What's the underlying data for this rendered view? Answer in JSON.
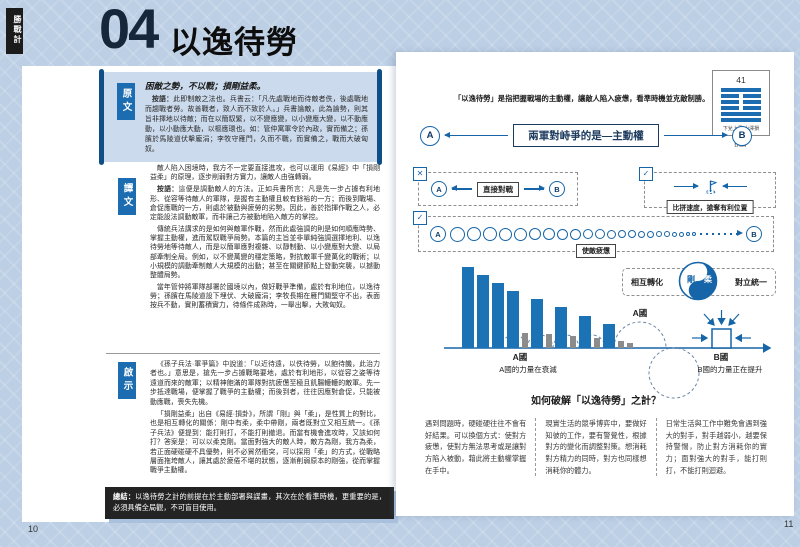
{
  "page": {
    "tab": "勝戰計",
    "number": "04",
    "title": "以逸待勞",
    "page_left": "10",
    "page_right": "11"
  },
  "left": {
    "original": {
      "label": "原文",
      "quote": "困敵之勢，不以戰；損剛益柔。",
      "note_label": "按語：",
      "note_text": "此即制敵之法也。兵書云：「凡先處戰地而待敵者佚，後處戰地而趨戰者勞。故善戰者，致人而不致於人。」兵書論敵，此為論勢，則其旨非擇地以待敵；而在以簡馭繁，以不變應變，以小變應大變，以不動應動，以小動應大動，以樞應環也。如：管仲寓軍令於內政，實而備之；孫臏於馬陵道伏擊龐涓；李牧守雁門，久而不戰，而實備之，戰而大破匈奴。"
    },
    "translation": {
      "label": "譯文",
      "p1": "敵人陷入困境時，我方不一定要直接進攻，也可以運用《易經》中「損剛益柔」的原理，逐步削弱對方實力，讓敵人由強轉弱。",
      "p2_label": "按語：",
      "p2_text": "這便是調動敵人的方法。正如兵書所言：凡是先一步占據有利地形、從容等待敵人的軍隊，是握有主動權且較有餘裕的一方；而後到戰場、倉促應戰的一方，則處於被動與疲勞的劣勢。因此，善於指揮作戰之人，必定能設法調動敵軍，而非讓己方被動地陷入敵方的掌控。",
      "p3": "傳統兵法講求的是如何與敵軍作戰，然而此處強調的則是如何順應時勢、掌握主動權，進而駕馭戰爭局勢。本篇的主旨並非單純強調選擇地利、以逸待勞地等待敵人，而是以簡單應對複雜、以靜制動、以小變應對大變、以局部牽制全局。例如，以不變萬變的穩定策略，對抗敵軍千變萬化的戰術；以小規模的調動牽制敵人大規模的出動；甚至在關鍵節點上發動突襲，以撼動整體局勢。",
      "p4": "當年管仲將軍隊部署於國境以內，做好戰爭準備，處於有利地位，以逸待勞；孫臏在馬陵道設下埋伏、大破龐涓；李牧長期在雁門關堅守不出，表面按兵不動，實則蓄積實力，待條件成熟時，一舉出擊，大敗匈奴。"
    },
    "insight": {
      "label": "啟示",
      "p1": "《孫子兵法·軍爭篇》中說道：「以近待遠，以佚待勞，以飽待饑，此治力者也。」意思是，搶先一步占據戰略要地，處於有利地形，以從容之姿等待遠道而來的敵軍；以精神飽滿的軍隊對抗疲憊至極且飢腸轆轆的敵軍。先一步抵達戰場，便掌握了戰爭的主動權；而後到者，往往因應對倉促，只能被動應戰，喪失先機。",
      "p2": "「損剛益柔」出自《易經·損卦》，所謂「剛」與「柔」，是性質上的對比，也是相互轉化的關係：剛中有柔，柔中帶剛，兩者既對立又相互統一。《孫子兵法》便提到：能打則打，不能打則撤退。而當有機會進攻時，又該如何打？答案是：可以以柔克剛。當面對強大的敵人時，敵方為剛，我方為柔，若正面硬碰硬不具優勢，則不必貿然衝突，可以採用「柔」的方式，從戰略層面拖垮敵人，讓其處於疲倦不堪的狀態，逐漸削弱原本的剛強，從而掌握戰爭主動權。"
    },
    "summary_label": "總結：",
    "summary_text": "以逸待勞之計的前提在於主動部署與謀畫，其次在於看準時機，更重要的是，必須具備全局觀，不可盲目使用。"
  },
  "right": {
    "intro": "「以逸待勞」是指把握戰場的主動權，讓敵人陷入疲憊，看準時機並克敵制勝。",
    "hexagram": {
      "number": "41",
      "lines": [
        "solid",
        "broken",
        "broken",
        "broken",
        "solid",
        "solid"
      ],
      "caption": "下兌上艮 山澤損",
      "name": "損卦"
    },
    "flow": {
      "a": "A",
      "b": "B",
      "center": "兩軍對峙爭的是—主動權"
    },
    "wrong": {
      "icon": "✕",
      "label": "直接對戰"
    },
    "race": {
      "icon": "✓",
      "label": "比拼速度，搶奪有利位置"
    },
    "fatigue": {
      "icon": "✓",
      "label": "使敵疲憊",
      "circles": [
        13,
        12,
        12,
        11,
        11,
        10,
        10,
        9,
        9,
        8,
        8,
        7,
        6,
        6,
        5,
        5,
        4,
        4,
        3,
        3,
        2,
        2
      ]
    },
    "yinyang": {
      "left": "相互轉化",
      "right": "對立統一",
      "gang": "剛",
      "rou": "柔"
    },
    "chartlabels": {
      "a": "A國",
      "a_caption": "A國的力量在衰減",
      "a2": "A國",
      "b": "B國",
      "b_caption": "B國的力量正在提升"
    },
    "how": {
      "heading": "如何破解「以逸待勞」之計？",
      "c1": "遇到問題時，硬碰硬往往不會有好結果。可以換個方式：使對方疲憊，使對方無法思考或是讓對方陷入被動，藉此將主動權掌握在手中。",
      "c2": "現實生活的競爭博弈中，要做好知彼的工作，要有警覺性，根據對方的變化而調整對策。想消耗對方精力的同時，對方也同樣想消耗你的體力。",
      "c3": "日常生活與工作中難免會遇到強大的對手，對手越弱小，越要保持警惕，防止對方消耗你的實力；面對強大的對手，能打則打，不能打則迴避。"
    }
  },
  "chart_data": {
    "type": "bar",
    "bars": [
      {
        "h": 81,
        "c": "blue"
      },
      {
        "h": 73,
        "c": "blue"
      },
      {
        "h": 65,
        "c": "blue"
      },
      {
        "h": 57,
        "c": "blue"
      },
      {
        "h": 15,
        "c": "gray"
      },
      {
        "h": 49,
        "c": "blue"
      },
      {
        "h": 14,
        "c": "gray"
      },
      {
        "h": 41,
        "c": "blue"
      },
      {
        "h": 12,
        "c": "gray"
      },
      {
        "h": 32,
        "c": "blue"
      },
      {
        "h": 10,
        "c": "gray"
      },
      {
        "h": 24,
        "c": "blue"
      },
      {
        "h": 7,
        "c": "gray"
      },
      {
        "h": 5,
        "c": "gray"
      }
    ],
    "series": [
      {
        "name": "A國（藍柱，力量衰減）",
        "values": [
          81,
          73,
          65,
          57,
          49,
          41,
          32,
          24
        ]
      },
      {
        "name": "灰柱（被消耗後）",
        "values": [
          15,
          14,
          12,
          10,
          7,
          5
        ]
      }
    ],
    "annotations": [
      "A國",
      "A國的力量在衰減",
      "A國",
      "B國",
      "B國的力量正在提升"
    ],
    "ylim": [
      0,
      90
    ],
    "grid": false,
    "legend": false
  }
}
